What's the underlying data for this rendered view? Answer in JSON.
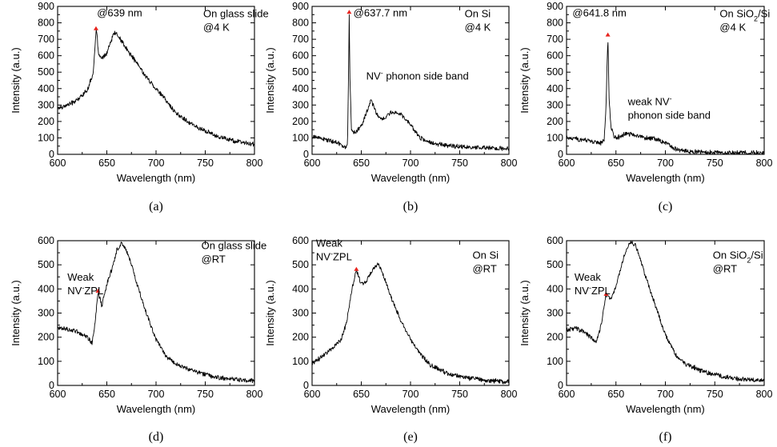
{
  "chart_data": [
    {
      "id": "a",
      "type": "line",
      "panel_label": "(a)",
      "xlabel": "Wavelength (nm)",
      "ylabel": "Intensity (a.u.)",
      "xlim": [
        600,
        800
      ],
      "ylim": [
        0,
        900
      ],
      "xticks": [
        600,
        650,
        700,
        750,
        800
      ],
      "yticks": [
        0,
        100,
        200,
        300,
        400,
        500,
        600,
        700,
        800,
        900
      ],
      "annotations": [
        {
          "lines": [
            "@639 nm"
          ],
          "at": [
            640,
            840
          ]
        },
        {
          "lines": [
            "On glass slide",
            "@4 K"
          ],
          "at": [
            748,
            835
          ]
        }
      ],
      "peak_marker": {
        "x": 639,
        "y": 760
      },
      "series": [
        {
          "x": [
            600,
            610,
            620,
            630,
            636,
            638,
            639,
            640,
            642,
            645,
            650,
            655,
            658,
            660,
            665,
            670,
            680,
            690,
            700,
            710,
            720,
            740,
            760,
            780,
            800
          ],
          "y": [
            280,
            300,
            330,
            390,
            490,
            640,
            760,
            720,
            600,
            580,
            615,
            700,
            745,
            730,
            690,
            640,
            560,
            470,
            400,
            330,
            250,
            170,
            115,
            80,
            60
          ]
        }
      ]
    },
    {
      "id": "b",
      "type": "line",
      "panel_label": "(b)",
      "xlabel": "Wavelength (nm)",
      "ylabel": "Intensity (a.u.)",
      "xlim": [
        600,
        800
      ],
      "ylim": [
        0,
        900
      ],
      "xticks": [
        600,
        650,
        700,
        750,
        800
      ],
      "yticks": [
        0,
        100,
        200,
        300,
        400,
        500,
        600,
        700,
        800,
        900
      ],
      "annotations": [
        {
          "lines": [
            "@637.7 nm"
          ],
          "at": [
            642,
            840
          ]
        },
        {
          "lines": [
            "On Si",
            "@4 K"
          ],
          "at": [
            755,
            835
          ]
        },
        {
          "lines": [
            "NV",
            "-",
            " phonon side band"
          ],
          "at": [
            655,
            455
          ]
        }
      ],
      "peak_marker": {
        "x": 637.7,
        "y": 860
      },
      "series": [
        {
          "x": [
            600,
            610,
            620,
            630,
            634,
            636,
            637,
            637.7,
            638.5,
            640,
            642,
            645,
            650,
            655,
            660,
            665,
            670,
            675,
            680,
            685,
            690,
            695,
            700,
            710,
            720,
            740,
            760,
            780,
            800
          ],
          "y": [
            110,
            95,
            80,
            60,
            45,
            60,
            450,
            860,
            450,
            150,
            130,
            140,
            170,
            250,
            330,
            250,
            215,
            225,
            250,
            255,
            240,
            215,
            180,
            100,
            70,
            50,
            42,
            38,
            35
          ]
        }
      ]
    },
    {
      "id": "c",
      "type": "line",
      "panel_label": "(c)",
      "xlabel": "Wavelength (nm)",
      "ylabel": "Intensity (a.u.)",
      "xlim": [
        600,
        800
      ],
      "ylim": [
        0,
        900
      ],
      "xticks": [
        600,
        650,
        700,
        750,
        800
      ],
      "yticks": [
        0,
        100,
        200,
        300,
        400,
        500,
        600,
        700,
        800,
        900
      ],
      "annotations": [
        {
          "lines": [
            "@641.8 nm"
          ],
          "at": [
            606,
            840
          ]
        },
        {
          "lines": [
            "On SiO",
            "2",
            "/Si",
            "@4 K"
          ],
          "at": [
            755,
            835
          ]
        },
        {
          "lines": [
            "weak NV",
            "-",
            "phonon side band"
          ],
          "at": [
            662,
            300
          ]
        }
      ],
      "peak_marker": {
        "x": 641.8,
        "y": 722
      },
      "series": [
        {
          "x": [
            600,
            610,
            620,
            630,
            635,
            638,
            640,
            641.8,
            643,
            645,
            648,
            650,
            655,
            660,
            670,
            680,
            690,
            700,
            710,
            720,
            740,
            760,
            780,
            800
          ],
          "y": [
            100,
            95,
            85,
            75,
            70,
            85,
            300,
            722,
            350,
            160,
            110,
            100,
            110,
            125,
            115,
            100,
            95,
            70,
            35,
            20,
            12,
            10,
            8,
            8
          ]
        }
      ]
    },
    {
      "id": "d",
      "type": "line",
      "panel_label": "(d)",
      "xlabel": "Wavelength (nm)",
      "ylabel": "Intensity (a.u.)",
      "xlim": [
        600,
        800
      ],
      "ylim": [
        0,
        600
      ],
      "xticks": [
        600,
        650,
        700,
        750,
        800
      ],
      "yticks": [
        0,
        100,
        200,
        300,
        400,
        500,
        600
      ],
      "annotations": [
        {
          "lines": [
            "Weak",
            "NV",
            "-",
            "ZPL"
          ],
          "at": [
            610,
            435
          ]
        },
        {
          "lines": [
            "On glass slide",
            "@RT"
          ],
          "at": [
            746,
            565
          ]
        }
      ],
      "peak_marker": {
        "x": 641,
        "y": 388
      },
      "series": [
        {
          "x": [
            600,
            610,
            620,
            630,
            635,
            638,
            641,
            645,
            650,
            655,
            660,
            665,
            670,
            675,
            680,
            690,
            700,
            710,
            720,
            740,
            760,
            780,
            800
          ],
          "y": [
            240,
            232,
            222,
            200,
            175,
            260,
            388,
            330,
            420,
            480,
            560,
            590,
            560,
            500,
            430,
            300,
            190,
            120,
            90,
            55,
            35,
            25,
            20
          ]
        }
      ]
    },
    {
      "id": "e",
      "type": "line",
      "panel_label": "(e)",
      "xlabel": "Wavelength (nm)",
      "ylabel": "Intensity (a.u.)",
      "xlim": [
        600,
        800
      ],
      "ylim": [
        0,
        600
      ],
      "xticks": [
        600,
        650,
        700,
        750,
        800
      ],
      "yticks": [
        0,
        100,
        200,
        300,
        400,
        500,
        600
      ],
      "annotations": [
        {
          "lines": [
            "Weak",
            "NV",
            "-",
            "ZPL"
          ],
          "at": [
            604,
            575
          ]
        },
        {
          "lines": [
            "On Si",
            "@RT"
          ],
          "at": [
            763,
            525
          ]
        }
      ],
      "peak_marker": {
        "x": 645,
        "y": 478
      },
      "series": [
        {
          "x": [
            600,
            610,
            620,
            630,
            635,
            640,
            645,
            650,
            655,
            660,
            665,
            668,
            670,
            675,
            680,
            690,
            700,
            710,
            720,
            740,
            760,
            780,
            800
          ],
          "y": [
            90,
            120,
            150,
            195,
            260,
            390,
            478,
            420,
            430,
            470,
            500,
            505,
            480,
            430,
            370,
            270,
            190,
            130,
            85,
            45,
            30,
            20,
            15
          ]
        }
      ]
    },
    {
      "id": "f",
      "type": "line",
      "panel_label": "(f)",
      "xlabel": "Wavelength (nm)",
      "ylabel": "Intensity (a.u.)",
      "xlim": [
        600,
        800
      ],
      "ylim": [
        0,
        600
      ],
      "xticks": [
        600,
        650,
        700,
        750,
        800
      ],
      "yticks": [
        0,
        100,
        200,
        300,
        400,
        500,
        600
      ],
      "annotations": [
        {
          "lines": [
            "Weak",
            "NV",
            "-",
            "ZPL"
          ],
          "at": [
            608,
            435
          ]
        },
        {
          "lines": [
            "On SiO",
            "2",
            "/Si",
            "@RT"
          ],
          "at": [
            748,
            525
          ]
        }
      ],
      "peak_marker": {
        "x": 640,
        "y": 375
      },
      "series": [
        {
          "x": [
            600,
            610,
            620,
            630,
            635,
            638,
            640,
            645,
            650,
            655,
            660,
            665,
            670,
            675,
            680,
            690,
            700,
            710,
            720,
            740,
            760,
            780,
            800
          ],
          "y": [
            230,
            238,
            215,
            180,
            250,
            330,
            375,
            355,
            410,
            490,
            560,
            595,
            580,
            520,
            450,
            330,
            210,
            130,
            90,
            55,
            35,
            25,
            20
          ]
        }
      ]
    }
  ]
}
